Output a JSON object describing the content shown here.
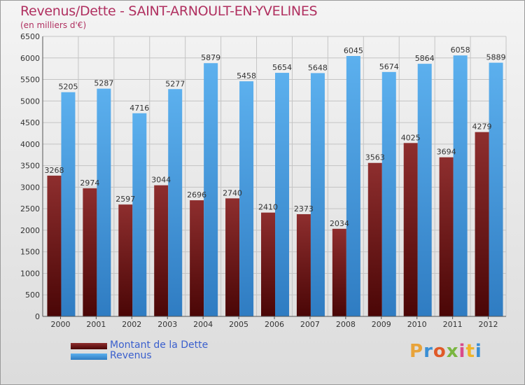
{
  "chart_data": {
    "type": "bar",
    "title": "Revenus/Dette - SAINT-ARNOULT-EN-YVELINES",
    "subtitle": "(en milliers d'€)",
    "categories": [
      "2000",
      "2001",
      "2002",
      "2003",
      "2004",
      "2005",
      "2006",
      "2007",
      "2008",
      "2009",
      "2010",
      "2011",
      "2012"
    ],
    "series": [
      {
        "name": "Montant de la Dette",
        "color": "#7b1f1f",
        "values": [
          3268,
          2974,
          2597,
          3044,
          2696,
          2740,
          2410,
          2373,
          2034,
          3563,
          4025,
          3694,
          4279
        ]
      },
      {
        "name": "Revenus",
        "color": "#4aa0e0",
        "values": [
          5205,
          5287,
          4716,
          5277,
          5879,
          5458,
          5654,
          5648,
          6045,
          5674,
          5864,
          6058,
          5889
        ]
      }
    ],
    "ylim": [
      0,
      6500
    ],
    "yticks": [
      0,
      500,
      1000,
      1500,
      2000,
      2500,
      3000,
      3500,
      4000,
      4500,
      5000,
      5500,
      6000,
      6500
    ],
    "grid": true,
    "legend_position": "bottom-left"
  },
  "logo": {
    "text": "Proxiti"
  },
  "colors": {
    "title": "#b03060",
    "legend_text": "#3a5fcd"
  }
}
